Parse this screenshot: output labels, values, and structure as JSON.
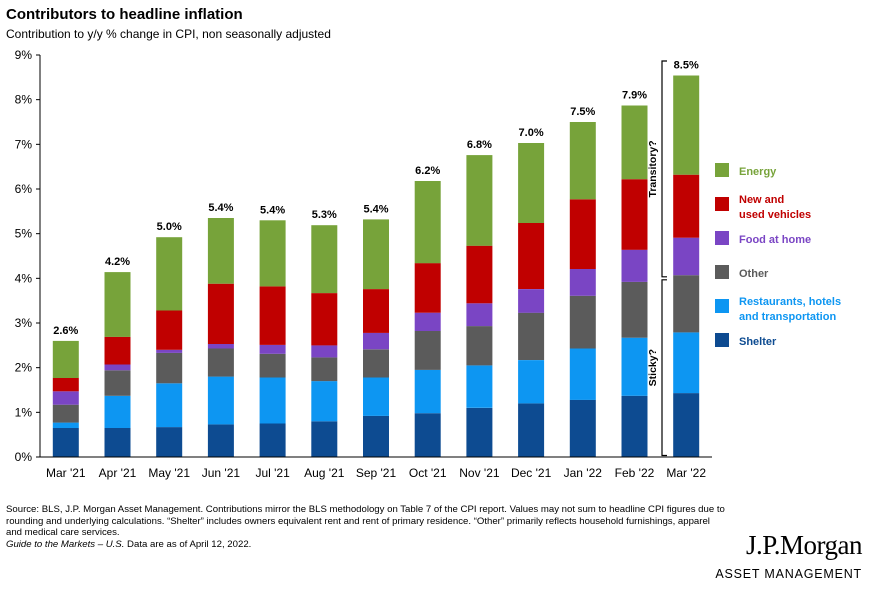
{
  "title": "Contributors to headline inflation",
  "subtitle": "Contribution to y/y % change in CPI, non seasonally adjusted",
  "chart_data": {
    "type": "bar",
    "stacked": true,
    "categories": [
      "Mar '21",
      "Apr '21",
      "May '21",
      "Jun '21",
      "Jul '21",
      "Aug '21",
      "Sep '21",
      "Oct '21",
      "Nov '21",
      "Dec '21",
      "Jan '22",
      "Feb '22",
      "Mar '22"
    ],
    "ylim": [
      0,
      9
    ],
    "yticks": [
      "0%",
      "1%",
      "2%",
      "3%",
      "4%",
      "5%",
      "6%",
      "7%",
      "8%",
      "9%"
    ],
    "grid": false,
    "legend_position": "right",
    "totals": [
      "2.6%",
      "4.2%",
      "5.0%",
      "5.4%",
      "5.4%",
      "5.3%",
      "5.4%",
      "6.2%",
      "6.8%",
      "7.0%",
      "7.5%",
      "7.9%",
      "8.5%"
    ],
    "series": [
      {
        "name": "Shelter",
        "color": "#0d4b91",
        "values": [
          0.65,
          0.65,
          0.67,
          0.73,
          0.75,
          0.8,
          0.92,
          0.98,
          1.1,
          1.2,
          1.28,
          1.37,
          1.43
        ]
      },
      {
        "name": "Restaurants, hotels and transportation",
        "color": "#0d96f2",
        "values": [
          0.12,
          0.72,
          0.98,
          1.07,
          1.03,
          0.9,
          0.86,
          0.97,
          0.95,
          0.97,
          1.15,
          1.3,
          1.36
        ]
      },
      {
        "name": "Other",
        "color": "#5b5b5b",
        "values": [
          0.4,
          0.57,
          0.68,
          0.63,
          0.53,
          0.53,
          0.63,
          0.87,
          0.88,
          1.06,
          1.18,
          1.25,
          1.28
        ]
      },
      {
        "name": "Food  at home",
        "color": "#7a45c4",
        "values": [
          0.3,
          0.13,
          0.07,
          0.1,
          0.2,
          0.27,
          0.37,
          0.41,
          0.51,
          0.53,
          0.6,
          0.72,
          0.84
        ]
      },
      {
        "name": "New and used vehicles",
        "color": "#c00000",
        "values": [
          0.3,
          0.62,
          0.88,
          1.35,
          1.31,
          1.17,
          0.98,
          1.11,
          1.29,
          1.48,
          1.56,
          1.58,
          1.41
        ]
      },
      {
        "name": "Energy",
        "color": "#77a33a",
        "values": [
          0.83,
          1.45,
          1.64,
          1.47,
          1.48,
          1.52,
          1.56,
          1.84,
          2.03,
          1.79,
          1.73,
          1.65,
          2.22
        ]
      }
    ],
    "brackets": [
      {
        "label": "Transitory?",
        "from": 4.0,
        "to": 8.9
      },
      {
        "label": "Sticky?",
        "from": 0.0,
        "to": 4.0
      }
    ]
  },
  "footnote": {
    "text": "Source: BLS, J.P. Morgan Asset Management. Contributions mirror the BLS methodology on Table 7 of the CPI report. Values may not sum to headline CPI figures due to rounding and underlying calculations. “Shelter” includes owners equivalent rent and rent of primary residence. “Other” primarily reflects household furnishings, apparel and medical care services.",
    "guide": "Guide to the Markets – U.S.",
    "date": " Data are as of April 12, 2022."
  },
  "logo": {
    "main": "J.P.Morgan",
    "sub": "ASSET MANAGEMENT"
  }
}
